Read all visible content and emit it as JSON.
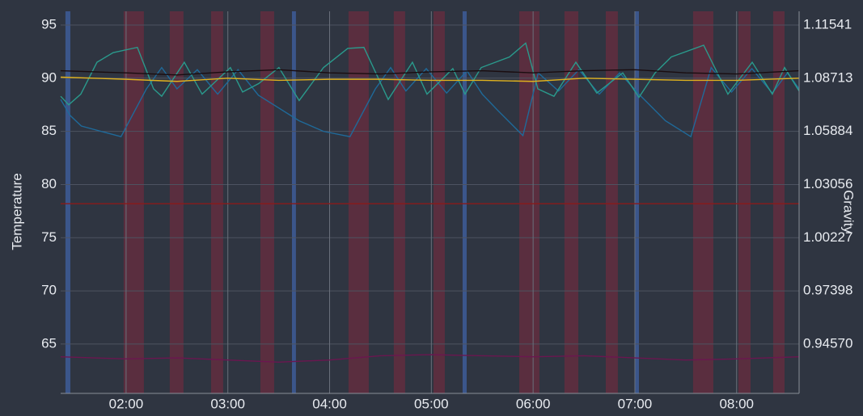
{
  "chart_data": {
    "type": "line",
    "y_label": "Temperature",
    "y2_label": "Gravity",
    "xlim": [
      1.357,
      8.614
    ],
    "xticks": [
      {
        "value": 2,
        "label": "02:00"
      },
      {
        "value": 3,
        "label": "03:00"
      },
      {
        "value": 4,
        "label": "04:00"
      },
      {
        "value": 5,
        "label": "05:00"
      },
      {
        "value": 6,
        "label": "06:00"
      },
      {
        "value": 7,
        "label": "07:00"
      },
      {
        "value": 8,
        "label": "08:00"
      }
    ],
    "ylim": [
      60.36,
      96.29
    ],
    "yticks": [
      65,
      70,
      75,
      80,
      85,
      90,
      95
    ],
    "y2lim": [
      0.91945,
      1.12271
    ],
    "y2ticks": [
      {
        "value": 0.9457,
        "label": "0.94570"
      },
      0.97398,
      1.00227,
      1.03056,
      1.05884,
      1.08713,
      1.11541
    ],
    "grid": true,
    "heating_color": "#6a2c3f",
    "cooling_color": "#3d5a93",
    "heating": [
      [
        1.976,
        2.175
      ],
      [
        2.429,
        2.564
      ],
      [
        2.835,
        2.954
      ],
      [
        3.32,
        3.455
      ],
      [
        4.186,
        4.385
      ],
      [
        4.631,
        4.742
      ],
      [
        5.021,
        5.132
      ],
      [
        5.864,
        6.062
      ],
      [
        6.308,
        6.444
      ],
      [
        6.714,
        6.833
      ],
      [
        7.572,
        7.771
      ],
      [
        8.017,
        8.137
      ],
      [
        8.359,
        8.471
      ]
    ],
    "cooling": [
      [
        1.404,
        1.452
      ],
      [
        3.63,
        3.669
      ],
      [
        5.307,
        5.347
      ],
      [
        7.0,
        7.04
      ]
    ],
    "series": [
      {
        "color": "#8b1a1a",
        "x": [
          1.357,
          8.614
        ],
        "values": [
          78.2,
          78.2
        ]
      },
      {
        "color": "#6b1650",
        "x": [
          1.357,
          2,
          2.5,
          3,
          3.5,
          4,
          4.5,
          5,
          5.5,
          6,
          6.5,
          7,
          7.5,
          8,
          8.614
        ],
        "values": [
          63.8,
          63.6,
          63.7,
          63.5,
          63.3,
          63.5,
          63.9,
          64.0,
          63.9,
          63.8,
          63.9,
          63.7,
          63.5,
          63.6,
          63.8
        ]
      },
      {
        "color": "#1f6a9a",
        "x": [
          1.357,
          1.45,
          1.56,
          1.95,
          2.2,
          2.35,
          2.5,
          2.7,
          2.9,
          3.1,
          3.3,
          3.45,
          3.7,
          3.94,
          4.2,
          4.45,
          4.6,
          4.75,
          4.95,
          5.15,
          5.35,
          5.5,
          5.65,
          5.9,
          6.05,
          6.25,
          6.45,
          6.65,
          6.85,
          7.05,
          7.3,
          7.55,
          7.75,
          7.95,
          8.15,
          8.35,
          8.5,
          8.614
        ],
        "values": [
          88.0,
          86.5,
          85.5,
          84.5,
          89,
          91,
          89,
          90.8,
          88.5,
          90.8,
          88.4,
          87.5,
          86,
          85,
          84.5,
          89,
          91,
          88.8,
          90.9,
          88.6,
          90.7,
          88.5,
          87,
          84.6,
          90.5,
          88.8,
          90.8,
          88.5,
          90.5,
          88.4,
          86,
          84.5,
          91,
          88.7,
          90.9,
          88.6,
          90.5,
          89
        ]
      },
      {
        "color": "#2a9a8c",
        "x": [
          1.357,
          1.436,
          1.555,
          1.714,
          1.873,
          2.111,
          2.27,
          2.35,
          2.572,
          2.747,
          3.025,
          3.145,
          3.304,
          3.502,
          3.701,
          3.94,
          4.178,
          4.337,
          4.576,
          4.814,
          4.957,
          5.211,
          5.331,
          5.49,
          5.768,
          5.927,
          6.046,
          6.205,
          6.42,
          6.626,
          6.881,
          7.04,
          7.199,
          7.358,
          7.676,
          7.914,
          8.153,
          8.351,
          8.471,
          8.614
        ],
        "values": [
          88.3,
          87.5,
          88.5,
          91.5,
          92.4,
          92.9,
          89,
          88.3,
          91.5,
          88.5,
          91,
          88.7,
          89.5,
          91,
          87.9,
          91,
          92.8,
          92.9,
          88,
          91.5,
          88.5,
          90.9,
          88.5,
          91,
          92,
          93.3,
          89,
          88.3,
          91.5,
          88.6,
          90.5,
          88.2,
          90.5,
          92,
          93.1,
          88.5,
          91.5,
          88.5,
          91,
          88.8
        ]
      },
      {
        "color": "#e0b21e",
        "x": [
          1.357,
          2,
          2.5,
          3,
          3.5,
          4,
          4.5,
          5,
          5.5,
          6,
          6.5,
          7,
          7.5,
          8,
          8.614
        ],
        "values": [
          90.1,
          89.9,
          89.7,
          90.0,
          89.8,
          89.9,
          89.9,
          89.8,
          89.8,
          89.7,
          90.0,
          89.9,
          89.8,
          89.8,
          90.0
        ]
      },
      {
        "color": "#1a0d10",
        "x": [
          1.357,
          2,
          2.5,
          3,
          3.5,
          4,
          4.5,
          5,
          5.5,
          6,
          6.5,
          7,
          7.5,
          8,
          8.614
        ],
        "values": [
          90.7,
          90.5,
          90.3,
          90.6,
          90.8,
          90.5,
          90.4,
          90.6,
          90.7,
          90.5,
          90.7,
          90.8,
          90.5,
          90.4,
          90.7
        ]
      }
    ]
  }
}
